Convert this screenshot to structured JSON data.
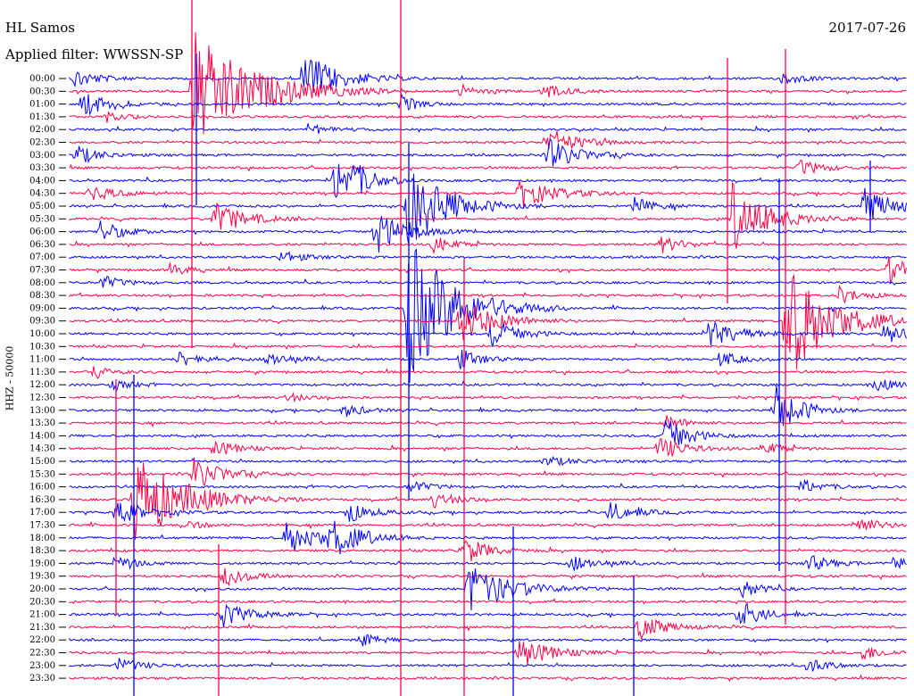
{
  "header": {
    "station": "HL Samos",
    "date": "2017-07-26",
    "filter": "Applied filter: WWSSN-SP"
  },
  "chart_data": {
    "type": "line",
    "title": "HL Samos",
    "ylabel": "HHZ - 50000",
    "trace_colors": [
      "#0000ff",
      "#ff0044"
    ],
    "row_labels": [
      "00:00",
      "00:30",
      "01:00",
      "01:30",
      "02:00",
      "02:30",
      "03:00",
      "03:30",
      "04:00",
      "04:30",
      "05:00",
      "05:30",
      "06:00",
      "06:30",
      "07:00",
      "07:30",
      "08:00",
      "08:30",
      "09:00",
      "09:30",
      "10:00",
      "10:30",
      "11:00",
      "11:30",
      "12:00",
      "12:30",
      "13:00",
      "13:30",
      "14:00",
      "14:30",
      "15:00",
      "15:30",
      "16:00",
      "16:30",
      "17:00",
      "17:30",
      "18:00",
      "18:30",
      "19:00",
      "19:30",
      "20:00",
      "20:30",
      "21:00",
      "21:30",
      "22:00",
      "22:30",
      "23:00",
      "23:30"
    ],
    "events": [
      {
        "row": 0,
        "x": 83,
        "amp": 12,
        "len": 22
      },
      {
        "row": 0,
        "x": 340,
        "amp": 30,
        "len": 35
      },
      {
        "row": 0,
        "x": 875,
        "amp": 8,
        "len": 20
      },
      {
        "row": 1,
        "x": 215,
        "amp": 70,
        "len": 60
      },
      {
        "row": 1,
        "x": 515,
        "amp": 8,
        "len": 18
      },
      {
        "row": 1,
        "x": 608,
        "amp": 10,
        "len": 22
      },
      {
        "row": 2,
        "x": 92,
        "amp": 16,
        "len": 25
      },
      {
        "row": 2,
        "x": 450,
        "amp": 10,
        "len": 18
      },
      {
        "row": 3,
        "x": 120,
        "amp": 5,
        "len": 15
      },
      {
        "row": 4,
        "x": 345,
        "amp": 7,
        "len": 18
      },
      {
        "row": 5,
        "x": 612,
        "amp": 14,
        "len": 35
      },
      {
        "row": 6,
        "x": 85,
        "amp": 12,
        "len": 22
      },
      {
        "row": 6,
        "x": 615,
        "amp": 18,
        "len": 30
      },
      {
        "row": 7,
        "x": 895,
        "amp": 10,
        "len": 22
      },
      {
        "row": 8,
        "x": 375,
        "amp": 30,
        "len": 22
      },
      {
        "row": 8,
        "x": 395,
        "amp": 12,
        "len": 22
      },
      {
        "row": 9,
        "x": 100,
        "amp": 10,
        "len": 25
      },
      {
        "row": 9,
        "x": 582,
        "amp": 18,
        "len": 35
      },
      {
        "row": 10,
        "x": 455,
        "amp": 50,
        "len": 40
      },
      {
        "row": 10,
        "x": 710,
        "amp": 10,
        "len": 20
      },
      {
        "row": 10,
        "x": 968,
        "amp": 22,
        "len": 30
      },
      {
        "row": 11,
        "x": 240,
        "amp": 20,
        "len": 30
      },
      {
        "row": 11,
        "x": 820,
        "amp": 40,
        "len": 35
      },
      {
        "row": 12,
        "x": 110,
        "amp": 14,
        "len": 22
      },
      {
        "row": 12,
        "x": 420,
        "amp": 28,
        "len": 28
      },
      {
        "row": 13,
        "x": 485,
        "amp": 10,
        "len": 20
      },
      {
        "row": 13,
        "x": 740,
        "amp": 10,
        "len": 22
      },
      {
        "row": 14,
        "x": 315,
        "amp": 8,
        "len": 20
      },
      {
        "row": 15,
        "x": 190,
        "amp": 8,
        "len": 18
      },
      {
        "row": 15,
        "x": 995,
        "amp": 16,
        "len": 25
      },
      {
        "row": 16,
        "x": 115,
        "amp": 8,
        "len": 20
      },
      {
        "row": 17,
        "x": 940,
        "amp": 10,
        "len": 22
      },
      {
        "row": 18,
        "x": 455,
        "amp": 90,
        "len": 45
      },
      {
        "row": 19,
        "x": 515,
        "amp": 28,
        "len": 35
      },
      {
        "row": 19,
        "x": 880,
        "amp": 70,
        "len": 45
      },
      {
        "row": 20,
        "x": 550,
        "amp": 16,
        "len": 28
      },
      {
        "row": 20,
        "x": 790,
        "amp": 16,
        "len": 35
      },
      {
        "row": 20,
        "x": 990,
        "amp": 12,
        "len": 25
      },
      {
        "row": 22,
        "x": 200,
        "amp": 10,
        "len": 25
      },
      {
        "row": 22,
        "x": 300,
        "amp": 8,
        "len": 25
      },
      {
        "row": 22,
        "x": 515,
        "amp": 12,
        "len": 20
      },
      {
        "row": 22,
        "x": 805,
        "amp": 10,
        "len": 20
      },
      {
        "row": 23,
        "x": 105,
        "amp": 6,
        "len": 18
      },
      {
        "row": 24,
        "x": 125,
        "amp": 8,
        "len": 18
      },
      {
        "row": 24,
        "x": 980,
        "amp": 10,
        "len": 18
      },
      {
        "row": 25,
        "x": 320,
        "amp": 6,
        "len": 18
      },
      {
        "row": 26,
        "x": 385,
        "amp": 8,
        "len": 20
      },
      {
        "row": 26,
        "x": 870,
        "amp": 30,
        "len": 25
      },
      {
        "row": 27,
        "x": 745,
        "amp": 10,
        "len": 20
      },
      {
        "row": 28,
        "x": 745,
        "amp": 22,
        "len": 25
      },
      {
        "row": 29,
        "x": 240,
        "amp": 10,
        "len": 22
      },
      {
        "row": 29,
        "x": 738,
        "amp": 14,
        "len": 25
      },
      {
        "row": 29,
        "x": 855,
        "amp": 8,
        "len": 20
      },
      {
        "row": 30,
        "x": 610,
        "amp": 6,
        "len": 28
      },
      {
        "row": 31,
        "x": 215,
        "amp": 20,
        "len": 30
      },
      {
        "row": 32,
        "x": 458,
        "amp": 8,
        "len": 20
      },
      {
        "row": 32,
        "x": 898,
        "amp": 8,
        "len": 22
      },
      {
        "row": 33,
        "x": 150,
        "amp": 55,
        "len": 50
      },
      {
        "row": 33,
        "x": 485,
        "amp": 10,
        "len": 22
      },
      {
        "row": 34,
        "x": 130,
        "amp": 14,
        "len": 30
      },
      {
        "row": 34,
        "x": 390,
        "amp": 12,
        "len": 22
      },
      {
        "row": 34,
        "x": 682,
        "amp": 12,
        "len": 25
      },
      {
        "row": 35,
        "x": 205,
        "amp": 6,
        "len": 18
      },
      {
        "row": 35,
        "x": 958,
        "amp": 12,
        "len": 22
      },
      {
        "row": 36,
        "x": 320,
        "amp": 20,
        "len": 35
      },
      {
        "row": 36,
        "x": 370,
        "amp": 20,
        "len": 30
      },
      {
        "row": 37,
        "x": 520,
        "amp": 16,
        "len": 25
      },
      {
        "row": 38,
        "x": 130,
        "amp": 10,
        "len": 20
      },
      {
        "row": 38,
        "x": 640,
        "amp": 8,
        "len": 30
      },
      {
        "row": 38,
        "x": 905,
        "amp": 10,
        "len": 22
      },
      {
        "row": 38,
        "x": 1000,
        "amp": 8,
        "len": 20
      },
      {
        "row": 39,
        "x": 250,
        "amp": 12,
        "len": 22
      },
      {
        "row": 40,
        "x": 525,
        "amp": 30,
        "len": 40
      },
      {
        "row": 40,
        "x": 830,
        "amp": 10,
        "len": 20
      },
      {
        "row": 42,
        "x": 250,
        "amp": 14,
        "len": 28
      },
      {
        "row": 42,
        "x": 828,
        "amp": 16,
        "len": 22
      },
      {
        "row": 43,
        "x": 715,
        "amp": 14,
        "len": 28
      },
      {
        "row": 44,
        "x": 405,
        "amp": 8,
        "len": 18
      },
      {
        "row": 45,
        "x": 580,
        "amp": 20,
        "len": 30
      },
      {
        "row": 45,
        "x": 965,
        "amp": 10,
        "len": 20
      },
      {
        "row": 46,
        "x": 130,
        "amp": 10,
        "len": 22
      },
      {
        "row": 46,
        "x": 905,
        "amp": 10,
        "len": 20
      }
    ],
    "spikes": [
      {
        "x": 215,
        "y1": 0,
        "y2": 390
      },
      {
        "x": 220,
        "y1": 60,
        "y2": 230
      },
      {
        "x": 449,
        "y1": 0,
        "y2": 780
      },
      {
        "x": 458,
        "y1": 160,
        "y2": 560
      },
      {
        "x": 130,
        "y1": 425,
        "y2": 690
      },
      {
        "x": 150,
        "y1": 420,
        "y2": 780
      },
      {
        "x": 520,
        "y1": 290,
        "y2": 780
      },
      {
        "x": 575,
        "y1": 590,
        "y2": 780
      },
      {
        "x": 880,
        "y1": 55,
        "y2": 700
      },
      {
        "x": 873,
        "y1": 200,
        "y2": 640
      },
      {
        "x": 815,
        "y1": 65,
        "y2": 340
      },
      {
        "x": 710,
        "y1": 645,
        "y2": 780
      },
      {
        "x": 245,
        "y1": 610,
        "y2": 780
      },
      {
        "x": 975,
        "y1": 180,
        "y2": 260
      }
    ]
  }
}
